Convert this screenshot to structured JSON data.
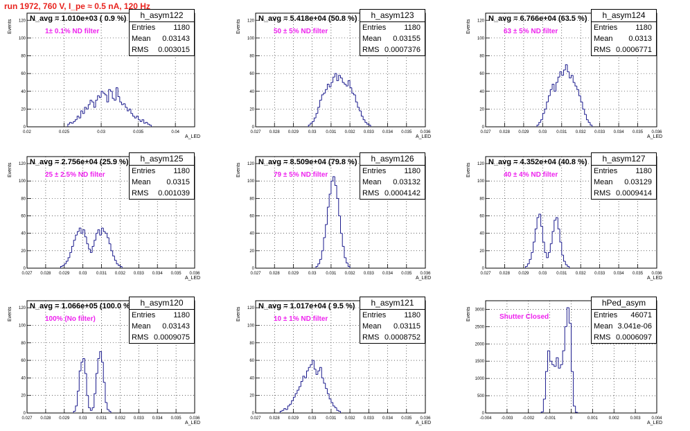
{
  "title": "run 1972,   760 V, I_pe ≈ 0.5 nA, 120 Hz",
  "chart_data": [
    {
      "type": "histogram",
      "name": "h_asym122",
      "navg": "N_avg = 1.010e+03 ( 0.9 %)",
      "filter": "1± 0.1% ND filter",
      "stats": {
        "entries": "1180",
        "mean": "0.03143",
        "rms": "0.003015"
      },
      "xlabel": "A_LED",
      "ylabel": "Events",
      "xlim": [
        0.02,
        0.0426
      ],
      "ylim": [
        0,
        128
      ],
      "xticks": [
        "0.02",
        "0.025",
        "0.03",
        "0.035",
        "0.04"
      ],
      "yticks": [
        "0",
        "20",
        "40",
        "60",
        "80",
        "100",
        "120"
      ],
      "bin_edges_start": 0.0255,
      "bin_width": 0.00025,
      "counts": [
        3,
        5,
        4,
        6,
        8,
        12,
        10,
        18,
        15,
        22,
        20,
        25,
        30,
        28,
        22,
        30,
        35,
        33,
        40,
        38,
        36,
        28,
        42,
        40,
        32,
        30,
        44,
        34,
        28,
        25,
        26,
        22,
        18,
        20,
        15,
        12,
        10,
        12,
        8,
        6,
        8,
        4,
        5,
        3,
        2
      ]
    },
    {
      "type": "histogram",
      "name": "h_asym123",
      "navg": "N_avg = 5.418e+04 (50.8 %)",
      "filter": "50 ± 5% ND filter",
      "stats": {
        "entries": "1180",
        "mean": "0.03155",
        "rms": "0.0007376"
      },
      "xlabel": "A_LED",
      "ylabel": "Events",
      "xlim": [
        0.027,
        0.036
      ],
      "ylim": [
        0,
        128
      ],
      "xticks": [
        "0.027",
        "0.028",
        "0.029",
        "0.03",
        "0.031",
        "0.032",
        "0.033",
        "0.034",
        "0.035",
        "0.036"
      ],
      "yticks": [
        "0",
        "20",
        "40",
        "60",
        "80",
        "100",
        "120"
      ],
      "bin_edges_start": 0.0298,
      "bin_width": 0.0001,
      "counts": [
        2,
        4,
        6,
        10,
        15,
        22,
        30,
        36,
        38,
        42,
        48,
        45,
        50,
        56,
        60,
        52,
        58,
        55,
        50,
        48,
        46,
        52,
        44,
        38,
        36,
        28,
        22,
        18,
        12,
        8,
        5,
        3,
        2
      ]
    },
    {
      "type": "histogram",
      "name": "h_asym124",
      "navg": "N_avg = 6.766e+04 (63.5 %)",
      "filter": "63 ± 5% ND filter",
      "stats": {
        "entries": "1180",
        "mean": "0.0313",
        "rms": "0.0006771"
      },
      "xlabel": "A_LED",
      "ylabel": "Events",
      "xlim": [
        0.027,
        0.036
      ],
      "ylim": [
        0,
        128
      ],
      "xticks": [
        "0.027",
        "0.028",
        "0.029",
        "0.03",
        "0.031",
        "0.032",
        "0.033",
        "0.034",
        "0.035",
        "0.036"
      ],
      "yticks": [
        "0",
        "20",
        "40",
        "60",
        "80",
        "100",
        "120"
      ],
      "bin_edges_start": 0.0297,
      "bin_width": 0.0001,
      "counts": [
        2,
        5,
        8,
        15,
        20,
        28,
        35,
        42,
        48,
        40,
        50,
        56,
        62,
        58,
        64,
        70,
        62,
        55,
        58,
        50,
        46,
        42,
        35,
        28,
        20,
        14,
        8,
        5,
        2
      ]
    },
    {
      "type": "histogram",
      "name": "h_asym125",
      "navg": "N_avg = 2.756e+04 (25.9 %)",
      "filter": "25 ± 2.5% ND filter",
      "stats": {
        "entries": "1180",
        "mean": "0.0315",
        "rms": "0.001039"
      },
      "xlabel": "A_LED",
      "ylabel": "Events",
      "xlim": [
        0.027,
        0.036
      ],
      "ylim": [
        0,
        128
      ],
      "xticks": [
        "0.027",
        "0.028",
        "0.029",
        "0.03",
        "0.031",
        "0.032",
        "0.033",
        "0.034",
        "0.035",
        "0.036"
      ],
      "yticks": [
        "0",
        "20",
        "40",
        "60",
        "80",
        "100",
        "120"
      ],
      "bin_edges_start": 0.0288,
      "bin_width": 0.0001,
      "counts": [
        2,
        3,
        5,
        8,
        12,
        18,
        25,
        32,
        38,
        42,
        46,
        40,
        44,
        36,
        28,
        22,
        18,
        25,
        32,
        40,
        44,
        38,
        46,
        42,
        40,
        35,
        28,
        20,
        14,
        9,
        5,
        3,
        2
      ]
    },
    {
      "type": "histogram",
      "name": "h_asym126",
      "navg": "N_avg = 8.509e+04 (79.8 %)",
      "filter": "79 ± 5% ND filter",
      "stats": {
        "entries": "1180",
        "mean": "0.03132",
        "rms": "0.0004142"
      },
      "xlabel": "A_LED",
      "ylabel": "Events",
      "xlim": [
        0.027,
        0.036
      ],
      "ylim": [
        0,
        128
      ],
      "xticks": [
        "0.027",
        "0.028",
        "0.029",
        "0.03",
        "0.031",
        "0.032",
        "0.033",
        "0.034",
        "0.035",
        "0.036"
      ],
      "yticks": [
        "0",
        "20",
        "40",
        "60",
        "80",
        "100",
        "120"
      ],
      "bin_edges_start": 0.0302,
      "bin_width": 0.0001,
      "counts": [
        2,
        5,
        10,
        20,
        35,
        50,
        70,
        85,
        100,
        105,
        95,
        80,
        60,
        40,
        25,
        12,
        6,
        2
      ]
    },
    {
      "type": "histogram",
      "name": "h_asym127",
      "navg": "N_avg = 4.352e+04 (40.8 %)",
      "filter": "40 ± 4% ND filter",
      "stats": {
        "entries": "1180",
        "mean": "0.03129",
        "rms": "0.0009414"
      },
      "xlabel": "A_LED",
      "ylabel": "Events",
      "xlim": [
        0.027,
        0.036
      ],
      "ylim": [
        0,
        128
      ],
      "xticks": [
        "0.027",
        "0.028",
        "0.029",
        "0.03",
        "0.031",
        "0.032",
        "0.033",
        "0.034",
        "0.035",
        "0.036"
      ],
      "yticks": [
        "0",
        "20",
        "40",
        "60",
        "80",
        "100",
        "120"
      ],
      "bin_edges_start": 0.0291,
      "bin_width": 0.0001,
      "counts": [
        2,
        5,
        10,
        18,
        30,
        45,
        58,
        62,
        48,
        30,
        18,
        12,
        18,
        28,
        42,
        55,
        58,
        45,
        30,
        15,
        8,
        4,
        2
      ]
    },
    {
      "type": "histogram",
      "name": "h_asym120",
      "navg": "N_avg = 1.066e+05 (100.0 %)",
      "filter": "100% (No filter)",
      "stats": {
        "entries": "1180",
        "mean": "0.03143",
        "rms": "0.0009075"
      },
      "xlabel": "A_LED",
      "ylabel": "Events",
      "xlim": [
        0.027,
        0.036
      ],
      "ylim": [
        0,
        128
      ],
      "xticks": [
        "0.027",
        "0.028",
        "0.029",
        "0.03",
        "0.031",
        "0.032",
        "0.033",
        "0.034",
        "0.035",
        "0.036"
      ],
      "yticks": [
        "0",
        "20",
        "40",
        "60",
        "80",
        "100",
        "120"
      ],
      "bin_edges_start": 0.0295,
      "bin_width": 0.0001,
      "counts": [
        2,
        8,
        25,
        48,
        58,
        62,
        45,
        20,
        6,
        3,
        6,
        22,
        45,
        62,
        70,
        58,
        35,
        12,
        4,
        2
      ]
    },
    {
      "type": "histogram",
      "name": "h_asym121",
      "navg": "N_avg = 1.017e+04 ( 9.5 %)",
      "filter": "10 ± 1% ND filter",
      "stats": {
        "entries": "1180",
        "mean": "0.03115",
        "rms": "0.0008752"
      },
      "xlabel": "A_LED",
      "ylabel": "Events",
      "xlim": [
        0.027,
        0.036
      ],
      "ylim": [
        0,
        128
      ],
      "xticks": [
        "0.027",
        "0.028",
        "0.029",
        "0.03",
        "0.031",
        "0.032",
        "0.033",
        "0.034",
        "0.035",
        "0.036"
      ],
      "yticks": [
        "0",
        "20",
        "40",
        "60",
        "80",
        "100",
        "120"
      ],
      "bin_edges_start": 0.0283,
      "bin_width": 0.0001,
      "counts": [
        2,
        3,
        5,
        4,
        8,
        10,
        14,
        18,
        22,
        26,
        30,
        36,
        42,
        40,
        48,
        52,
        55,
        60,
        50,
        44,
        48,
        52,
        40,
        34,
        28,
        22,
        16,
        12,
        8,
        6,
        3,
        2
      ]
    },
    {
      "type": "histogram",
      "name": "hPed_asym",
      "navg": "",
      "filter": "Shutter Closed",
      "stats": {
        "entries": "46071",
        "mean": "3.041e-06",
        "rms": "0.0006097"
      },
      "xlabel": "A_LED",
      "ylabel": "Events",
      "xlim": [
        -0.004,
        0.004
      ],
      "ylim": [
        0,
        3250
      ],
      "xticks": [
        "-0.004",
        "-0.003",
        "-0.002",
        "-0.001",
        "0",
        "0.001",
        "0.002",
        "0.003",
        "0.004"
      ],
      "yticks": [
        "0",
        "500",
        "1000",
        "1500",
        "2000",
        "2500",
        "3000"
      ],
      "bin_edges_start": -0.0014,
      "bin_width": 0.0001,
      "counts": [
        30,
        400,
        1200,
        1800,
        1500,
        1400,
        1350,
        1600,
        1300,
        1400,
        1800,
        2500,
        3050,
        2600,
        1200,
        200,
        20
      ]
    }
  ]
}
